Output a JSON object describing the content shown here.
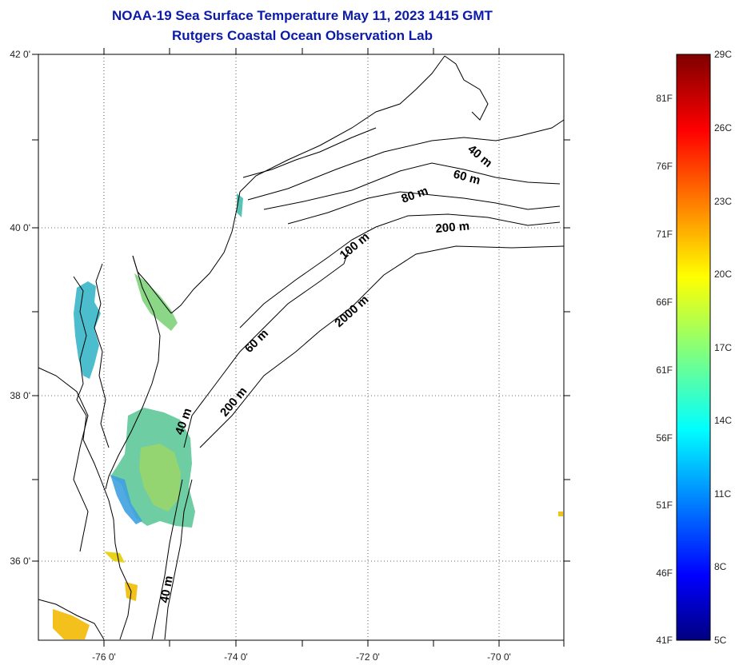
{
  "header": {
    "title": "NOAA-19 Sea Surface Temperature May 11, 2023 1415 GMT",
    "subtitle": "Rutgers Coastal Ocean Observation Lab"
  },
  "map": {
    "lat_labels": [
      "42 0'",
      "40 0'",
      "38 0'",
      "36 0'"
    ],
    "lon_labels": [
      "-76 0'",
      "-74 0'",
      "-72 0'",
      "-70 0'"
    ],
    "isobath_labels": [
      "40 m",
      "60 m",
      "80 m",
      "200 m",
      "100 m",
      "2000 m",
      "60 m",
      "200 m",
      "40 m",
      "40 m"
    ],
    "land_color": "#ffffff",
    "coast_color": "#000000"
  },
  "colorbar": {
    "celsius_labels": [
      "29C",
      "26C",
      "23C",
      "20C",
      "17C",
      "14C",
      "11C",
      "8C",
      "5C"
    ],
    "fahrenheit_labels": [
      "81F",
      "76F",
      "71F",
      "66F",
      "61F",
      "56F",
      "51F",
      "46F",
      "41F"
    ],
    "colormap": "jet",
    "range_c": [
      5,
      29
    ]
  }
}
